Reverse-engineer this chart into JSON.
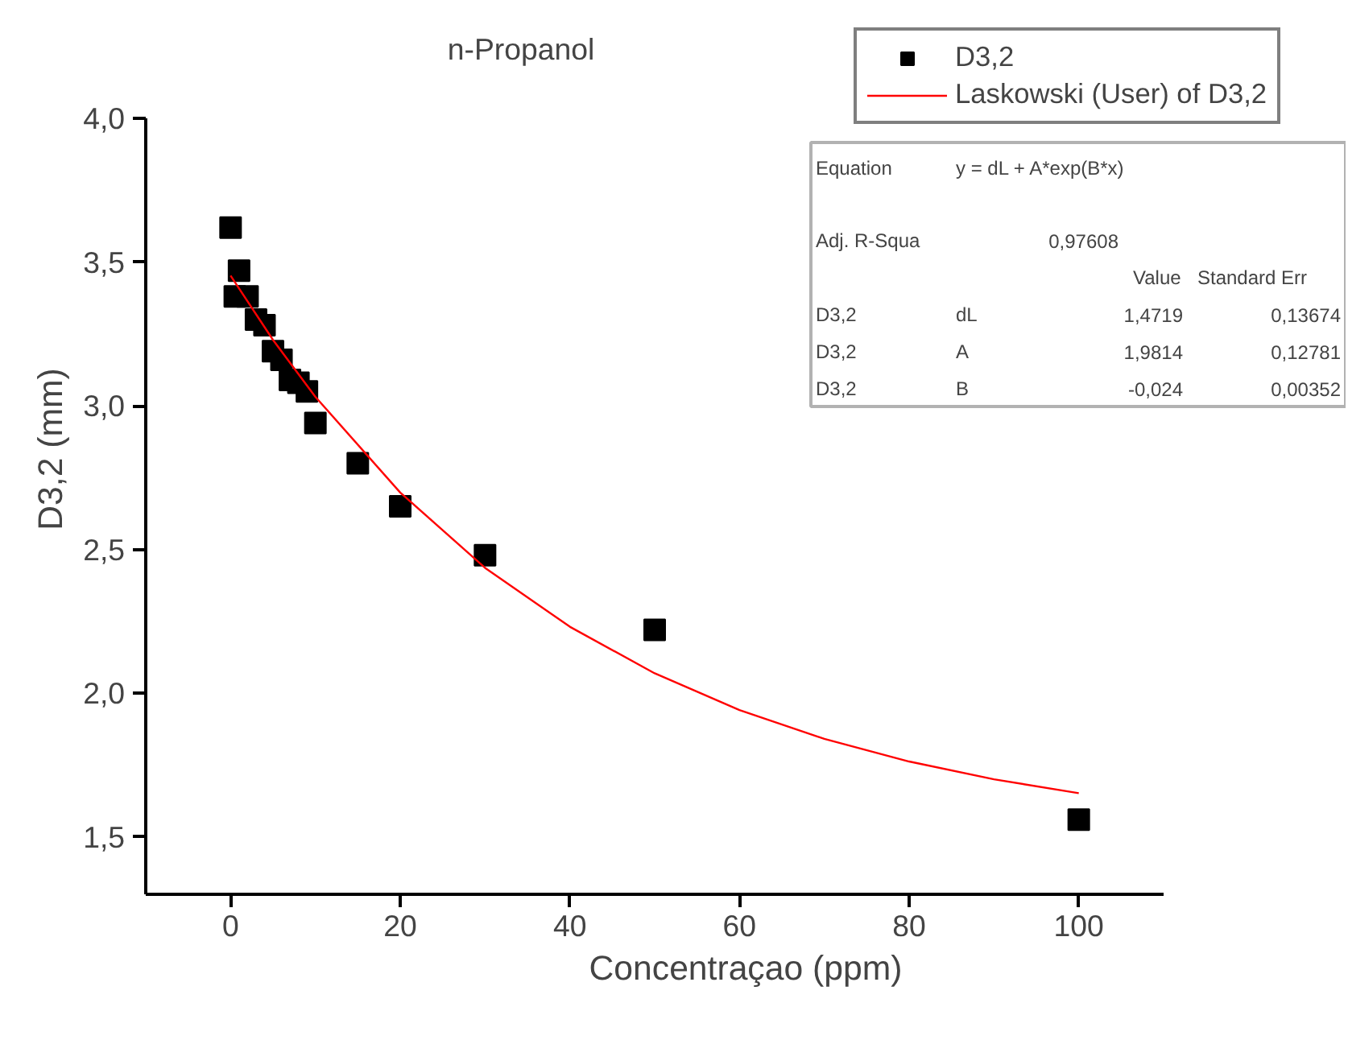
{
  "chart_data": {
    "type": "scatter",
    "title": "n-Propanol",
    "xlabel": "Concentraçao (ppm)",
    "ylabel": "D3,2 (mm)",
    "xlim": [
      -10,
      110
    ],
    "xticks": [
      0,
      20,
      40,
      60,
      80,
      100
    ],
    "ylim": [
      1.3,
      4.0
    ],
    "yticks": [
      {
        "value": 1.5,
        "label": "1,5"
      },
      {
        "value": 2.0,
        "label": "2,0"
      },
      {
        "value": 2.5,
        "label": "2,5"
      },
      {
        "value": 3.0,
        "label": "3,0"
      },
      {
        "value": 3.5,
        "label": "3,5"
      },
      {
        "value": 4.0,
        "label": "4,0"
      }
    ],
    "grid": false,
    "legend": "top right",
    "series": [
      {
        "name": "D3,2",
        "marker": "square",
        "color": "#000000",
        "x": [
          0,
          0.5,
          1,
          2,
          3,
          4,
          5,
          6,
          7,
          8,
          9,
          10,
          15,
          20,
          30,
          50,
          100
        ],
        "values": [
          3.62,
          3.38,
          3.47,
          3.38,
          3.3,
          3.28,
          3.19,
          3.16,
          3.09,
          3.08,
          3.05,
          2.94,
          2.8,
          2.65,
          2.48,
          2.22,
          1.56
        ]
      },
      {
        "name": "Laskowski (User) of D3,2",
        "type": "line",
        "color": "#ff0000",
        "x": [
          0,
          5,
          10,
          20,
          30,
          40,
          50,
          60,
          70,
          80,
          90,
          100
        ],
        "values": [
          3.453,
          3.229,
          3.031,
          2.698,
          2.436,
          2.231,
          2.069,
          1.941,
          1.841,
          1.762,
          1.7,
          1.652
        ]
      }
    ],
    "annotations": [
      "Equation",
      "y = dL + A*exp(B*x)",
      "Adj. R-Squa",
      "0,97608",
      "Value",
      "Standard Err",
      "D3,2",
      "dL",
      "1,4719",
      "0,13674",
      "D3,2",
      "A",
      "1,9814",
      "0,12781",
      "D3,2",
      "B",
      "-0,024",
      "0,00352"
    ]
  }
}
